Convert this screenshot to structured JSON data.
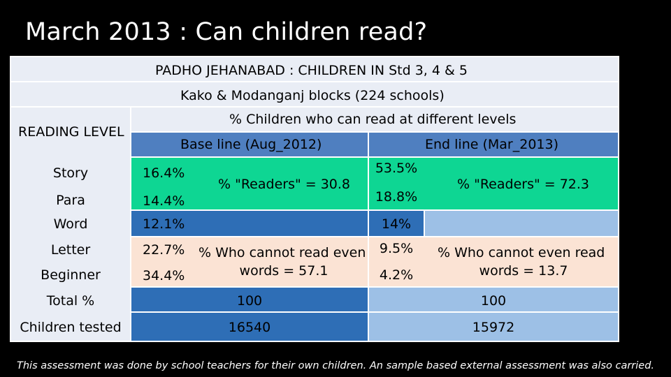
{
  "slide": {
    "title": "March 2013 : Can children read?",
    "footnote": "This assessment was done by school teachers for their own children. An sample based external assessment was also carried."
  },
  "table": {
    "header_line1": "PADHO JEHANABAD : CHILDREN IN Std 3, 4 & 5",
    "header_line2": "Kako & Modanganj blocks (224 schools)",
    "header_line3": "% Children who can read at different levels",
    "reading_level_label": "READING LEVEL",
    "baseline_label": "Base line (Aug_2012)",
    "endline_label": "End line (Mar_2013)",
    "rows": [
      {
        "level": "Story",
        "baseline": "16.4%",
        "endline": "53.5%"
      },
      {
        "level": "Para",
        "baseline": "14.4%",
        "endline": "18.8%"
      },
      {
        "level": "Word",
        "baseline": "12.1%",
        "endline": "14%"
      },
      {
        "level": "Letter",
        "baseline": "22.7%",
        "endline": "9.5%"
      },
      {
        "level": "Beginner",
        "baseline": "34.4%",
        "endline": "4.2%"
      }
    ],
    "baseline_readers": "% \"Readers\" = 30.8",
    "endline_readers": "% \"Readers\" = 72.3",
    "baseline_cannot_read_line1": "% Who cannot read even",
    "baseline_cannot_read_line2": "words = 57.1",
    "endline_cannot_read_line1": "% Who cannot even read",
    "endline_cannot_read_line2": "words = 13.7",
    "total_label": "Total %",
    "total_baseline": "100",
    "total_endline": "100",
    "tested_label": "Children tested",
    "tested_baseline": "16540",
    "tested_endline": "15972"
  },
  "colors": {
    "light_row": "#e9edf5",
    "header_blue": "#4f7fc0",
    "mid_blue": "#2e6eb6",
    "light_blue": "#9dc0e6",
    "green": "#0ed693",
    "peach": "#fbe3d4"
  }
}
